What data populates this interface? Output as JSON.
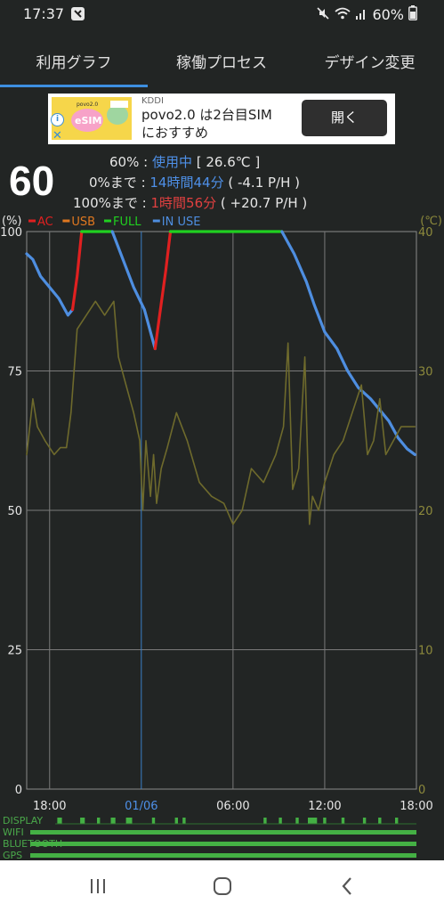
{
  "status_bar": {
    "time": "17:37",
    "battery_text": "60%",
    "icons": [
      "app-icon",
      "mute-icon",
      "wifi-icon",
      "signal-icon",
      "battery-icon"
    ]
  },
  "tabs": [
    {
      "label": "利用グラフ",
      "selected": true
    },
    {
      "label": "稼働プロセス",
      "selected": false
    },
    {
      "label": "デザイン変更",
      "selected": false
    }
  ],
  "ad": {
    "sponsor": "KDDI",
    "title_line1": "povo2.0 は2台目SIM",
    "title_line2": "におすすめ",
    "button": "開く",
    "image_text": "eSIM"
  },
  "summary": {
    "level": "60",
    "line1": {
      "label": "60% : ",
      "status": "使用中",
      "temp": " [ 26.6℃ ]"
    },
    "line2": {
      "label": "0%まで : ",
      "time": "14時間44分",
      "rate": " ( -4.1 P/H )"
    },
    "line3": {
      "label": "100%まで : ",
      "time": "1時間56分",
      "rate": " ( +20.7 P/H )"
    }
  },
  "chart_data": {
    "type": "line",
    "y_left_unit": "(%)",
    "y_right_unit": "(℃)",
    "y_left_ticks": [
      "100",
      "75",
      "50",
      "25",
      "0"
    ],
    "y_right_ticks": [
      "40",
      "30",
      "20",
      "10",
      "0"
    ],
    "ylim_left": [
      0,
      100
    ],
    "ylim_right": [
      0,
      40
    ],
    "x_ticks": [
      {
        "label": "18:00",
        "t": 0,
        "highlight": false
      },
      {
        "label": "01/06",
        "t": 6,
        "highlight": true
      },
      {
        "label": "06:00",
        "t": 12,
        "highlight": false
      },
      {
        "label": "12:00",
        "t": 18,
        "highlight": false
      },
      {
        "label": "18:00",
        "t": 24,
        "highlight": false
      }
    ],
    "xlim_hours": [
      -1.5,
      24
    ],
    "legend": [
      {
        "name": "AC",
        "color": "#e02020"
      },
      {
        "name": "USB",
        "color": "#e07820"
      },
      {
        "name": "FULL",
        "color": "#20d020"
      },
      {
        "name": "IN USE",
        "color": "#4e8ee0"
      }
    ],
    "legend_position": "top-left",
    "grid": true,
    "series": [
      {
        "name": "IN USE",
        "color": "#4e8ee0",
        "points": [
          [
            -1.5,
            96
          ],
          [
            -1.1,
            95
          ],
          [
            -0.6,
            92
          ],
          [
            0,
            90
          ],
          [
            0.6,
            88
          ],
          [
            1.2,
            85
          ],
          [
            1.5,
            86
          ]
        ]
      },
      {
        "name": "AC",
        "color": "#e02020",
        "points": [
          [
            1.5,
            86
          ],
          [
            1.8,
            92
          ],
          [
            2.1,
            100
          ]
        ]
      },
      {
        "name": "FULL",
        "color": "#20d020",
        "points": [
          [
            2.1,
            100
          ],
          [
            4.1,
            100
          ]
        ]
      },
      {
        "name": "IN USE",
        "color": "#4e8ee0",
        "points": [
          [
            4.1,
            100
          ],
          [
            4.8,
            95
          ],
          [
            5.5,
            90
          ],
          [
            6.2,
            86
          ],
          [
            6.6,
            82
          ],
          [
            6.9,
            79
          ]
        ]
      },
      {
        "name": "AC",
        "color": "#e02020",
        "points": [
          [
            6.9,
            79
          ],
          [
            7.2,
            85
          ],
          [
            7.6,
            93
          ],
          [
            7.9,
            100
          ]
        ]
      },
      {
        "name": "FULL",
        "color": "#20d020",
        "points": [
          [
            7.9,
            100
          ],
          [
            15.2,
            100
          ]
        ]
      },
      {
        "name": "IN USE",
        "color": "#4e8ee0",
        "points": [
          [
            15.2,
            100
          ],
          [
            16.0,
            96
          ],
          [
            16.8,
            91
          ],
          [
            17.3,
            87
          ],
          [
            18.0,
            82
          ],
          [
            18.8,
            79
          ],
          [
            19.5,
            75
          ],
          [
            20.2,
            72
          ],
          [
            21.0,
            70
          ],
          [
            21.6,
            68
          ],
          [
            22.2,
            66
          ],
          [
            22.8,
            63
          ],
          [
            23.4,
            61
          ],
          [
            23.9,
            60
          ]
        ]
      },
      {
        "name": "temperature",
        "axis": "right",
        "color": "#6e6a2c",
        "points": [
          [
            -1.5,
            24
          ],
          [
            -1.1,
            28
          ],
          [
            -0.8,
            26
          ],
          [
            -0.3,
            25
          ],
          [
            0.3,
            24
          ],
          [
            0.7,
            24.5
          ],
          [
            1.1,
            24.5
          ],
          [
            1.4,
            27
          ],
          [
            1.8,
            33
          ],
          [
            2.4,
            34
          ],
          [
            3.0,
            35
          ],
          [
            3.6,
            34
          ],
          [
            4.2,
            35
          ],
          [
            4.5,
            31
          ],
          [
            5.0,
            29
          ],
          [
            5.5,
            27
          ],
          [
            5.9,
            25
          ],
          [
            6.1,
            20
          ],
          [
            6.3,
            25
          ],
          [
            6.6,
            21
          ],
          [
            6.8,
            24
          ],
          [
            7.0,
            20.5
          ],
          [
            7.3,
            23
          ],
          [
            7.7,
            24.5
          ],
          [
            8.3,
            27
          ],
          [
            9.0,
            25
          ],
          [
            9.8,
            22
          ],
          [
            10.6,
            21
          ],
          [
            11.4,
            20.5
          ],
          [
            12.0,
            19
          ],
          [
            12.6,
            20
          ],
          [
            13.2,
            23
          ],
          [
            14.0,
            22
          ],
          [
            14.8,
            24
          ],
          [
            15.3,
            26
          ],
          [
            15.6,
            32
          ],
          [
            15.9,
            21.5
          ],
          [
            16.3,
            23
          ],
          [
            16.7,
            31
          ],
          [
            17.0,
            19
          ],
          [
            17.2,
            21
          ],
          [
            17.6,
            20
          ],
          [
            18.0,
            22
          ],
          [
            18.6,
            24
          ],
          [
            19.2,
            25
          ],
          [
            19.8,
            27
          ],
          [
            20.4,
            29
          ],
          [
            20.8,
            24
          ],
          [
            21.2,
            25
          ],
          [
            21.6,
            28
          ],
          [
            22.0,
            24
          ],
          [
            22.5,
            25
          ],
          [
            23.0,
            26
          ],
          [
            23.9,
            26
          ]
        ]
      }
    ]
  },
  "activity_bars": [
    {
      "name": "DISPLAY",
      "segments": [
        [
          0.5,
          0.8
        ],
        [
          2.0,
          2.3
        ],
        [
          3.1,
          3.3
        ],
        [
          4.0,
          4.3
        ],
        [
          5.0,
          5.4
        ],
        [
          6.7,
          6.9
        ],
        [
          8.2,
          8.4
        ],
        [
          8.7,
          8.9
        ],
        [
          14.0,
          14.2
        ],
        [
          15.0,
          15.2
        ],
        [
          16.1,
          16.3
        ],
        [
          16.9,
          17.5
        ],
        [
          17.9,
          18.1
        ],
        [
          19.1,
          19.3
        ],
        [
          20.5,
          20.7
        ],
        [
          21.5,
          21.7
        ],
        [
          22.6,
          22.8
        ]
      ]
    },
    {
      "name": "WIFI",
      "segments": [
        [
          -1.5,
          24
        ]
      ]
    },
    {
      "name": "BLUETOOTH",
      "segments": [
        [
          -1.5,
          24
        ]
      ]
    },
    {
      "name": "GPS",
      "segments": [
        [
          -1.5,
          24
        ]
      ]
    }
  ],
  "nav": [
    "recent-apps",
    "home",
    "back"
  ]
}
